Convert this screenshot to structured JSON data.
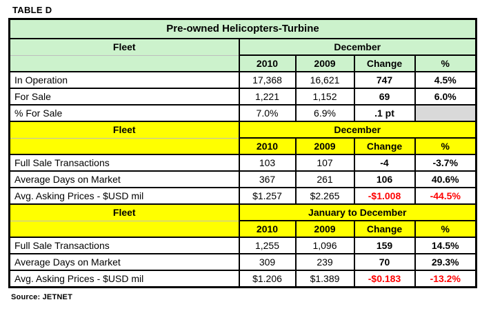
{
  "page": {
    "tag": "TABLE D",
    "source": "Source: JETNET"
  },
  "colors": {
    "header_green": "#ccf2cc",
    "header_yellow": "#ffff00",
    "empty_cell_gray": "#d9d9d9",
    "negative_red": "#ff0000",
    "border_black": "#000000"
  },
  "chart_data": {
    "type": "table",
    "title": "Pre-owned Helicopters-Turbine",
    "layout": {
      "row_label_header": "Fleet",
      "grid": "black gridlines, colored header bands",
      "legend_position": "none"
    },
    "sections": [
      {
        "theme": "green",
        "header_left": "Fleet",
        "header_right": "December",
        "columns": [
          "2010",
          "2009",
          "Change",
          "%"
        ],
        "rows": [
          {
            "label": "In Operation",
            "y2010": "17,368",
            "y2009": "16,621",
            "change": "747",
            "pct": "4.5%"
          },
          {
            "label": "For Sale",
            "y2010": "1,221",
            "y2009": "1,152",
            "change": "69",
            "pct": "6.0%"
          },
          {
            "label": "% For Sale",
            "y2010": "7.0%",
            "y2009": "6.9%",
            "change": ".1 pt",
            "pct": ""
          }
        ]
      },
      {
        "theme": "yellow",
        "header_left": "Fleet",
        "header_right": "December",
        "columns": [
          "2010",
          "2009",
          "Change",
          "%"
        ],
        "rows": [
          {
            "label": "Full Sale Transactions",
            "y2010": "103",
            "y2009": "107",
            "change": "-4",
            "pct": "-3.7%"
          },
          {
            "label": "Average Days on Market",
            "y2010": "367",
            "y2009": "261",
            "change": "106",
            "pct": "40.6%"
          },
          {
            "label": "Avg. Asking Prices - $USD mil",
            "y2010": "$1.257",
            "y2009": "$2.265",
            "change": "-$1.008",
            "pct": "-44.5%"
          }
        ]
      },
      {
        "theme": "yellow",
        "header_left": "Fleet",
        "header_right": "January to December",
        "columns": [
          "2010",
          "2009",
          "Change",
          "%"
        ],
        "rows": [
          {
            "label": "Full Sale Transactions",
            "y2010": "1,255",
            "y2009": "1,096",
            "change": "159",
            "pct": "14.5%"
          },
          {
            "label": "Average Days on Market",
            "y2010": "309",
            "y2009": "239",
            "change": "70",
            "pct": "29.3%"
          },
          {
            "label": "Avg. Asking Prices - $USD mil",
            "y2010": "$1.206",
            "y2009": "$1.389",
            "change": "-$0.183",
            "pct": "-13.2%"
          }
        ]
      }
    ]
  }
}
